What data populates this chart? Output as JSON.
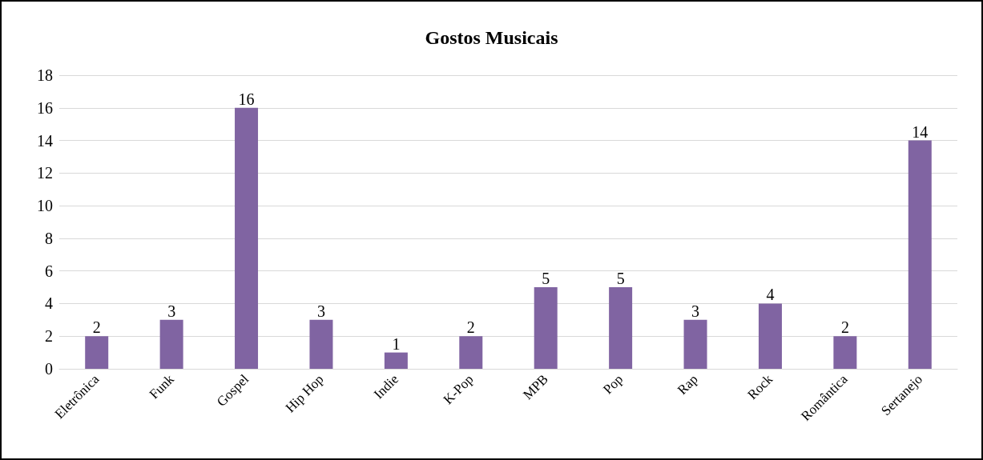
{
  "chart_data": {
    "type": "bar",
    "title": "Gostos Musicais",
    "categories": [
      "Eletrônica",
      "Funk",
      "Gospel",
      "Hip Hop",
      "Indie",
      "K-Pop",
      "MPB",
      "Pop",
      "Rap",
      "Rock",
      "Romântica",
      "Sertanejo"
    ],
    "values": [
      2,
      3,
      16,
      3,
      1,
      2,
      5,
      5,
      3,
      4,
      2,
      14
    ],
    "color": "#8064a2",
    "ylim": [
      0,
      18
    ],
    "yticks": [
      0,
      2,
      4,
      6,
      8,
      10,
      12,
      14,
      16,
      18
    ],
    "grid": "y",
    "data_labels": true
  }
}
